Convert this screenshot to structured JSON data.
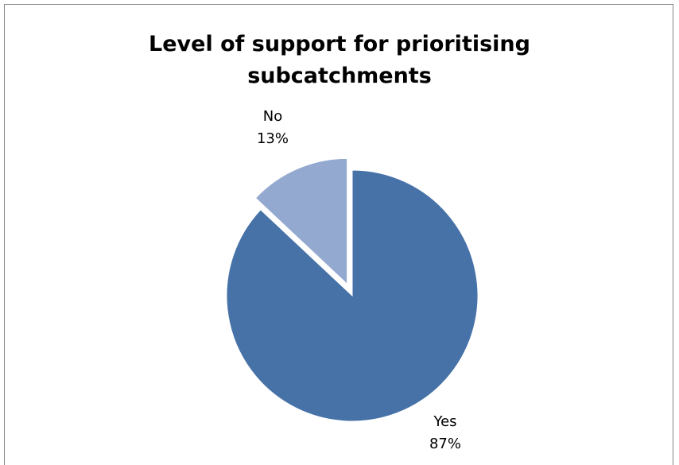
{
  "chart_data": {
    "type": "pie",
    "title": "Level of support for prioritising subcatchments",
    "title_lines": [
      "Level of support for prioritising",
      "subcatchments"
    ],
    "categories": [
      "Yes",
      "No"
    ],
    "values": [
      87,
      13
    ],
    "value_labels": [
      "87%",
      "13%"
    ],
    "colors": [
      "#4672A8",
      "#94A9D0"
    ],
    "exploded": [
      "No"
    ],
    "legend": "none"
  }
}
